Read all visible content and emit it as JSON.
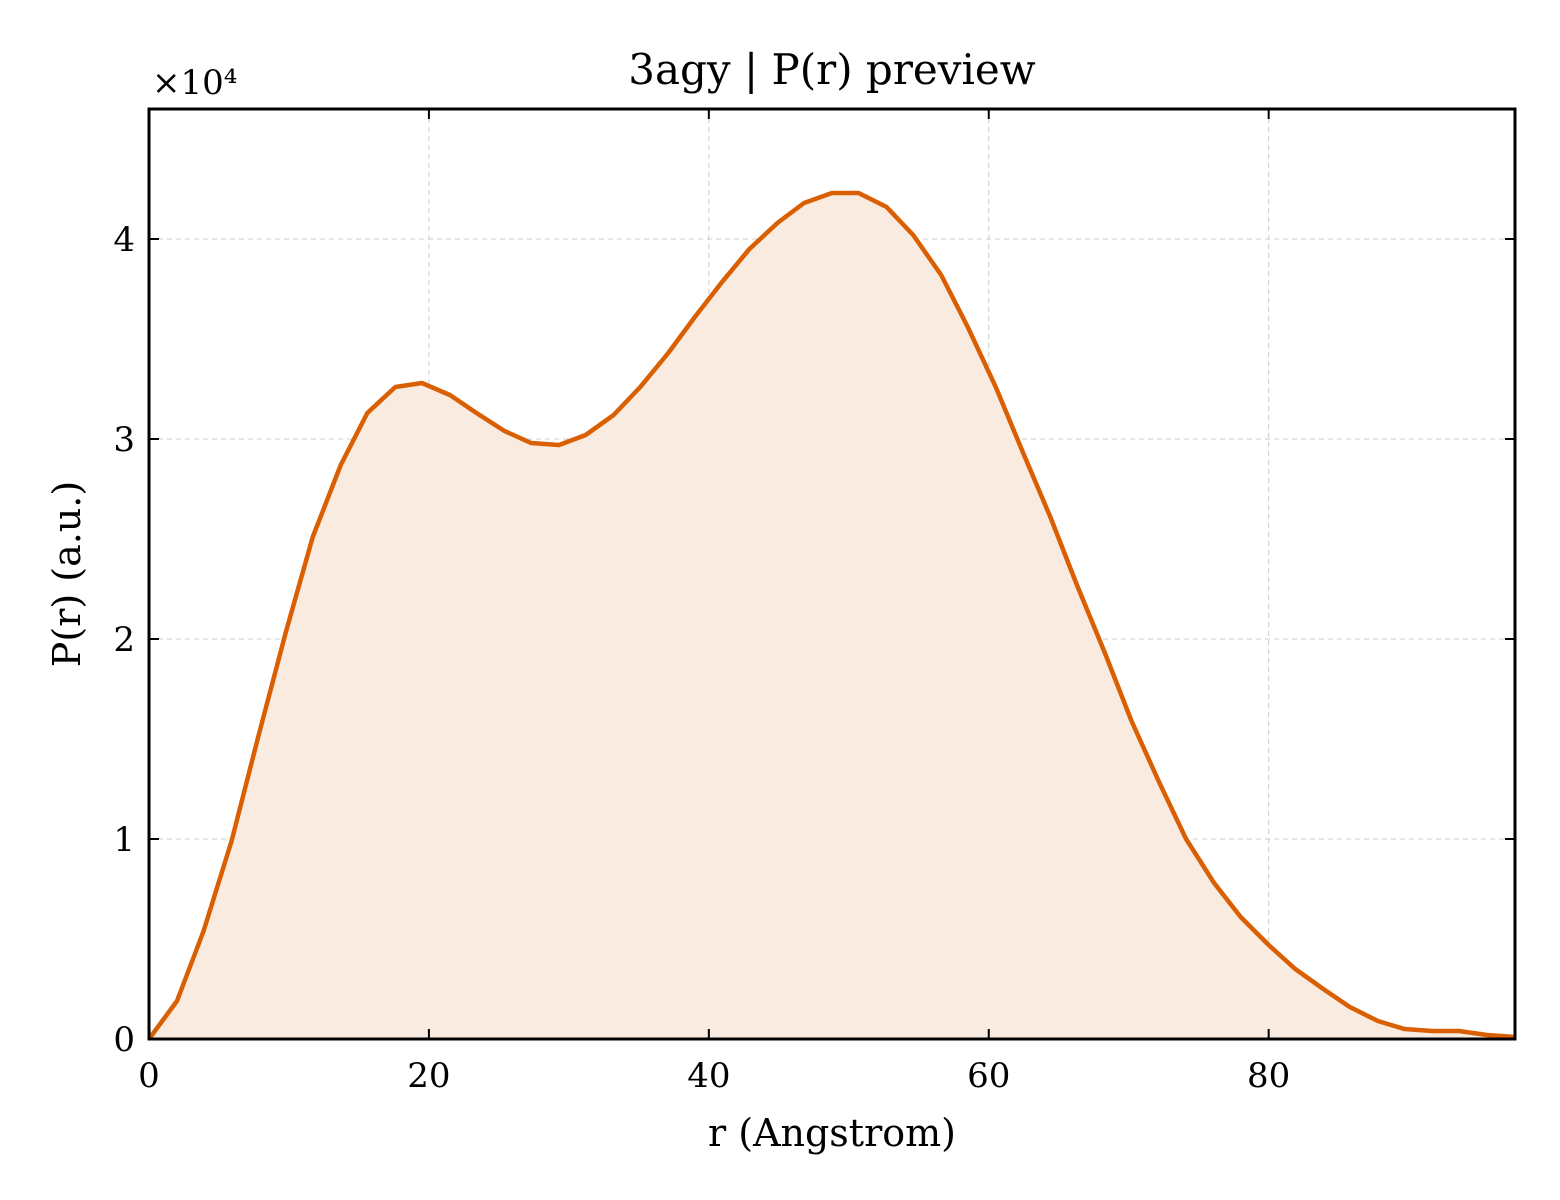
{
  "chart_data": {
    "type": "area",
    "title": "3agy | P(r) preview",
    "xlabel": "r (Angstrom)",
    "ylabel": "P(r) (a.u.)",
    "y_offset_label": "×10⁴",
    "xlim": [
      0,
      97.6
    ],
    "ylim": [
      0,
      4.65
    ],
    "y_scale_factor": 10000,
    "x_ticks": [
      0,
      20,
      40,
      60,
      80
    ],
    "x_tick_labels": [
      "0",
      "20",
      "40",
      "60",
      "80"
    ],
    "y_ticks": [
      0,
      1,
      2,
      3,
      4
    ],
    "y_tick_labels": [
      "0",
      "1",
      "2",
      "3",
      "4"
    ],
    "grid": true,
    "colors": {
      "line": "#d95f02",
      "fill": "#f9ebe0"
    },
    "series": [
      {
        "x": [
          0,
          2.0,
          3.9,
          5.9,
          7.8,
          9.8,
          11.7,
          13.7,
          15.6,
          17.6,
          19.5,
          21.5,
          23.4,
          25.4,
          27.3,
          29.3,
          31.2,
          33.2,
          35.1,
          37.1,
          39.0,
          41.0,
          42.9,
          44.9,
          46.8,
          48.8,
          50.7,
          52.7,
          54.6,
          56.6,
          58.5,
          60.5,
          62.4,
          64.4,
          66.3,
          68.3,
          70.2,
          72.2,
          74.1,
          76.1,
          78.0,
          80.0,
          81.9,
          83.9,
          85.8,
          87.8,
          89.7,
          91.7,
          93.6,
          95.6,
          97.6
        ],
        "values": [
          0.0,
          0.19,
          0.54,
          0.99,
          1.51,
          2.04,
          2.51,
          2.87,
          3.13,
          3.26,
          3.28,
          3.22,
          3.13,
          3.04,
          2.98,
          2.97,
          3.02,
          3.12,
          3.26,
          3.43,
          3.61,
          3.79,
          3.95,
          4.08,
          4.18,
          4.23,
          4.23,
          4.16,
          4.02,
          3.82,
          3.56,
          3.26,
          2.94,
          2.61,
          2.27,
          1.93,
          1.59,
          1.28,
          1.0,
          0.78,
          0.61,
          0.47,
          0.35,
          0.25,
          0.16,
          0.09,
          0.05,
          0.04,
          0.04,
          0.02,
          0.01
        ]
      }
    ]
  }
}
